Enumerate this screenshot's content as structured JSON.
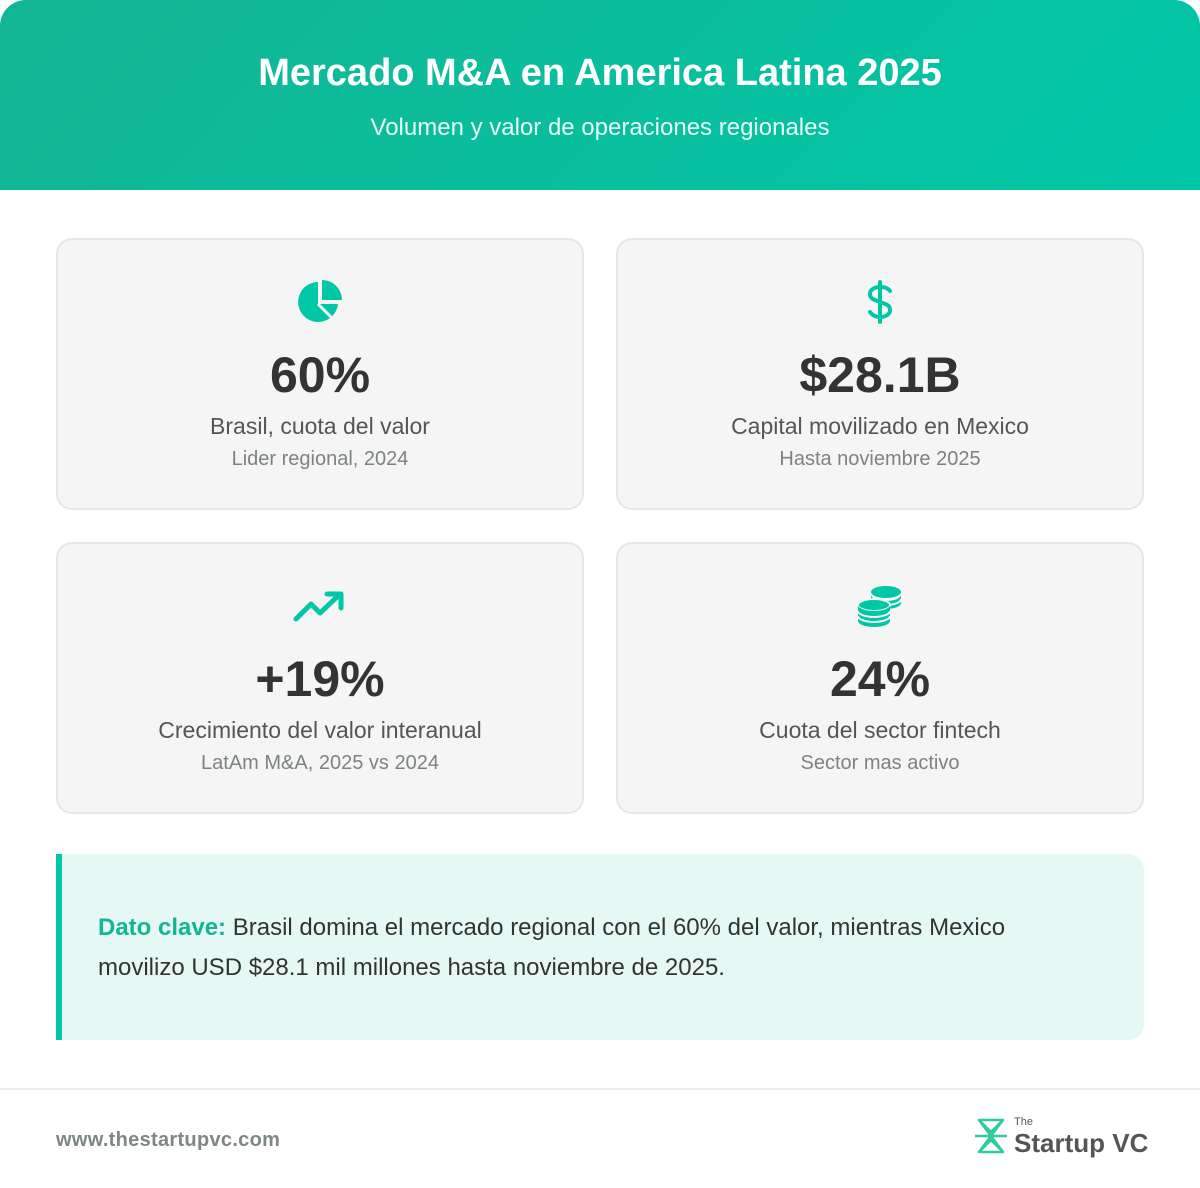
{
  "header": {
    "title": "Mercado M&A en America Latina 2025",
    "subtitle": "Volumen y valor de operaciones regionales"
  },
  "colors": {
    "accent": "#00c7a6",
    "accent_dark": "#13b594",
    "card_bg": "#f5f5f5",
    "insight_bg": "#e6f8f3",
    "text_dark": "#333333",
    "text_muted": "#7d8384"
  },
  "stats": [
    {
      "icon": "pie-chart-icon",
      "value": "60%",
      "label": "Brasil, cuota del valor",
      "sub": "Lider regional, 2024"
    },
    {
      "icon": "dollar-sign-icon",
      "value": "$28.1B",
      "label": "Capital movilizado en Mexico",
      "sub": "Hasta noviembre 2025"
    },
    {
      "icon": "trending-up-icon",
      "value": "+19%",
      "label": "Crecimiento del valor interanual",
      "sub": "LatAm M&A, 2025 vs 2024"
    },
    {
      "icon": "coins-icon",
      "value": "24%",
      "label": "Cuota del sector fintech",
      "sub": "Sector mas activo"
    }
  ],
  "insight": {
    "key_label": "Dato clave:",
    "text": "Brasil domina el mercado regional con el 60% del valor, mientras Mexico movilizo USD $28.1 mil millones hasta noviembre de 2025."
  },
  "footer": {
    "url": "www.thestartupvc.com",
    "logo_the": "The",
    "logo_name": "Startup VC"
  }
}
